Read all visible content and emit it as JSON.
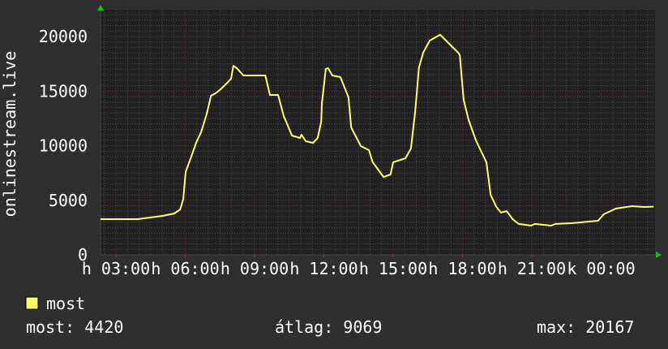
{
  "chart_data": {
    "type": "line",
    "title": "",
    "ylabel": "onlinestream.live",
    "xlabel": "",
    "ylim": [
      0,
      20000
    ],
    "xlim": [
      "02:20",
      "02:20"
    ],
    "grid": true,
    "y_ticks": [
      "0",
      "5000",
      "10000",
      "15000",
      "20000"
    ],
    "x_ticks": [
      {
        "at": "03:00",
        "label": "h 03:00"
      },
      {
        "at": "06:00",
        "label": "h 06:00"
      },
      {
        "at": "09:00",
        "label": "h 09:00"
      },
      {
        "at": "12:00",
        "label": "h 12:00"
      },
      {
        "at": "15:00",
        "label": "h 15:00"
      },
      {
        "at": "18:00",
        "label": "h 18:00"
      },
      {
        "at": "21:00",
        "label": "h 21:00"
      },
      {
        "at": "00:00",
        "label": "k 00:00"
      }
    ],
    "series": [
      {
        "name": "most",
        "color": "#ffff66",
        "points": [
          [
            "02:21",
            3270
          ],
          [
            "03:57",
            3270
          ],
          [
            "05:01",
            3570
          ],
          [
            "05:32",
            3790
          ],
          [
            "05:47",
            4160
          ],
          [
            "05:55",
            5130
          ],
          [
            "06:01",
            7580
          ],
          [
            "06:14",
            8850
          ],
          [
            "06:29",
            10330
          ],
          [
            "06:41",
            11230
          ],
          [
            "06:56",
            12940
          ],
          [
            "07:07",
            14570
          ],
          [
            "07:19",
            14800
          ],
          [
            "07:32",
            15170
          ],
          [
            "07:49",
            15760
          ],
          [
            "07:59",
            16130
          ],
          [
            "08:05",
            17320
          ],
          [
            "08:14",
            17100
          ],
          [
            "08:31",
            16430
          ],
          [
            "09:02",
            16430
          ],
          [
            "09:28",
            16430
          ],
          [
            "09:40",
            14650
          ],
          [
            "10:01",
            14650
          ],
          [
            "10:16",
            12710
          ],
          [
            "10:37",
            10930
          ],
          [
            "10:58",
            10710
          ],
          [
            "11:02",
            11000
          ],
          [
            "11:13",
            10410
          ],
          [
            "11:32",
            10260
          ],
          [
            "11:44",
            10710
          ],
          [
            "11:53",
            12190
          ],
          [
            "11:55",
            13900
          ],
          [
            "12:05",
            17030
          ],
          [
            "12:11",
            17100
          ],
          [
            "12:22",
            16430
          ],
          [
            "12:43",
            16280
          ],
          [
            "13:04",
            14420
          ],
          [
            "13:11",
            11670
          ],
          [
            "13:36",
            9960
          ],
          [
            "13:57",
            9590
          ],
          [
            "14:07",
            8480
          ],
          [
            "14:35",
            7140
          ],
          [
            "14:53",
            7360
          ],
          [
            "15:00",
            8480
          ],
          [
            "15:32",
            8850
          ],
          [
            "15:46",
            9740
          ],
          [
            "15:57",
            13090
          ],
          [
            "16:07",
            17170
          ],
          [
            "16:18",
            18510
          ],
          [
            "16:35",
            19630
          ],
          [
            "17:02",
            20167
          ],
          [
            "17:13",
            19780
          ],
          [
            "17:32",
            19110
          ],
          [
            "17:49",
            18510
          ],
          [
            "17:53",
            18290
          ],
          [
            "18:03",
            14200
          ],
          [
            "18:16",
            12340
          ],
          [
            "18:35",
            10480
          ],
          [
            "18:52",
            9220
          ],
          [
            "19:02",
            8480
          ],
          [
            "19:13",
            5500
          ],
          [
            "19:28",
            4390
          ],
          [
            "19:40",
            3870
          ],
          [
            "19:55",
            4010
          ],
          [
            "20:10",
            3270
          ],
          [
            "20:26",
            2830
          ],
          [
            "20:58",
            2680
          ],
          [
            "21:08",
            2830
          ],
          [
            "21:50",
            2680
          ],
          [
            "22:01",
            2830
          ],
          [
            "22:43",
            2900
          ],
          [
            "23:52",
            3120
          ],
          [
            "00:07",
            3720
          ],
          [
            "00:38",
            4240
          ],
          [
            "01:20",
            4460
          ],
          [
            "01:52",
            4390
          ],
          [
            "02:15",
            4420
          ]
        ]
      }
    ],
    "legend": {
      "placement": "bottom-left",
      "label": "most",
      "color": "#ffff66"
    },
    "stats": {
      "current": "most: 4420",
      "average": "átlag: 9069",
      "max": "max: 20167"
    }
  }
}
